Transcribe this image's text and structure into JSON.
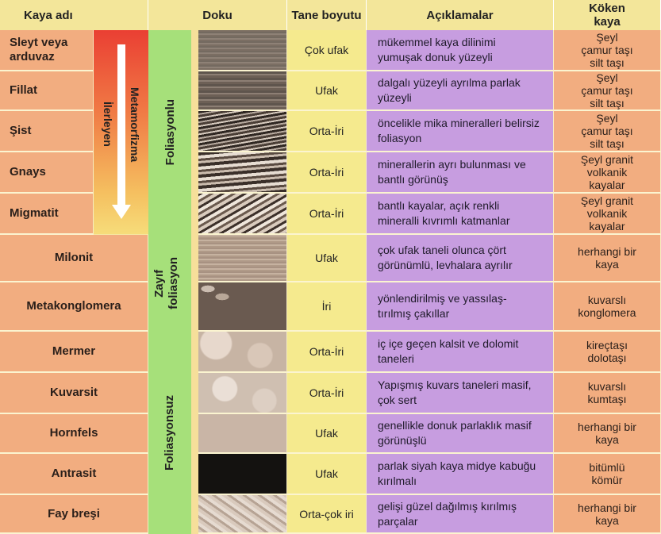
{
  "headers": {
    "rock": "Kaya adı",
    "texture": "Doku",
    "grain": "Tane boyutu",
    "desc": "Açıklamalar",
    "source": "Köken\nkaya"
  },
  "metamorphism": {
    "label1": "Metamorfizma",
    "label2": "İlerleyen"
  },
  "groups": {
    "foliated": "Foliasyonlu",
    "weak": "Zayıf\nfoliasyon",
    "nonfoliated": "Foliasyonsuz"
  },
  "rows": [
    {
      "name": "Sleyt veya arduvaz",
      "grain": "Çok ufak",
      "desc": "mükemmel kaya dilinimi yumuşak donuk yüzeyli",
      "source": "Şeyl\nçamur taşı\nsilt taşı",
      "texture": "slate"
    },
    {
      "name": "Fillat",
      "grain": "Ufak",
      "desc": "dalgalı yüzeyli ayrılma parlak yüzeyli",
      "source": "Şeyl\nçamur taşı\nsilt taşı",
      "texture": "phyllite"
    },
    {
      "name": "Şist",
      "grain": "Orta-İri",
      "desc": "öncelikle mika mineralleri belirsiz foliasyon",
      "source": "Şeyl\nçamur taşı\nsilt taşı",
      "texture": "schist"
    },
    {
      "name": "Gnays",
      "grain": "Orta-İri",
      "desc": "minerallerin ayrı bulunması ve bantlı görünüş",
      "source": "Şeyl  granit\nvolkanik\nkayalar",
      "texture": "gneiss"
    },
    {
      "name": "Migmatit",
      "grain": "Orta-İri",
      "desc": "bantlı kayalar, açık renkli mineralli kıvrımlı katmanlar",
      "source": "Şeyl  granit\nvolkanik\nkayalar",
      "texture": "migmatite"
    },
    {
      "name": "Milonit",
      "grain": "Ufak",
      "desc": "çok ufak taneli olunca çört görünümlü, levhalara ayrılır",
      "source": "herhangi bir\nkaya",
      "texture": "mylonite"
    },
    {
      "name": "Metakonglomera",
      "grain": "İri",
      "desc": "yönlendirilmiş ve yassılaş- tırılmış çakıllar",
      "source": "kuvarslı\nkonglomera",
      "texture": "metaconglomerate"
    },
    {
      "name": "Mermer",
      "grain": "Orta-İri",
      "desc": "iç içe geçen kalsit ve dolomit taneleri",
      "source": "kireçtaşı\ndolotaşı",
      "texture": "marble"
    },
    {
      "name": "Kuvarsit",
      "grain": "Orta-İri",
      "desc": "Yapışmış kuvars taneleri masif, çok sert",
      "source": "kuvarslı\nkumtaşı",
      "texture": "quartzite"
    },
    {
      "name": "Hornfels",
      "grain": "Ufak",
      "desc": "genellikle donuk parlaklık masif görünüşlü",
      "source": "herhangi bir\nkaya",
      "texture": "hornfels"
    },
    {
      "name": "Antrasit",
      "grain": "Ufak",
      "desc": "parlak siyah kaya midye kabuğu kırılmalı",
      "source": "bitümlü\nkömür",
      "texture": "anthracite"
    },
    {
      "name": "Fay breşi",
      "grain": "Orta-çok iri",
      "desc": "gelişi güzel dağılmış kırılmış parçalar",
      "source": "herhangi bir\nkaya",
      "texture": "breccia"
    }
  ]
}
